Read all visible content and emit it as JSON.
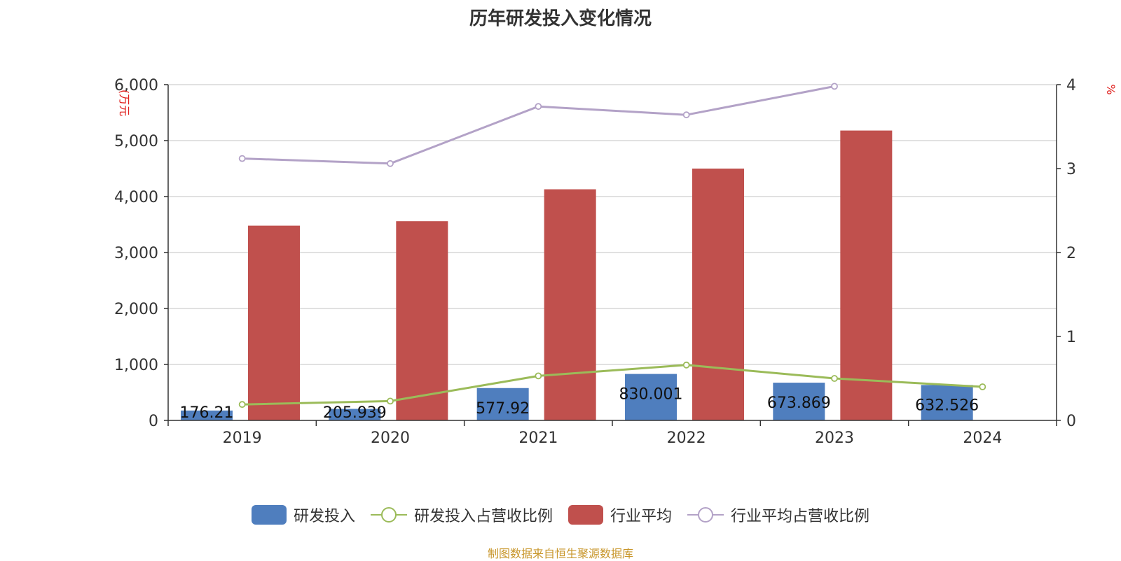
{
  "title": "历年研发投入变化情况",
  "source": "制图数据来自恒生聚源数据库",
  "colors": {
    "rd": "#4f7ebe",
    "industry": "#c0504d",
    "rd_ratio": "#9bbb59",
    "industry_ratio": "#b3a2c7",
    "axis": "#333333",
    "grid": "#cfcfcf",
    "unit": "#e0201e"
  },
  "chart_data": {
    "type": "bar",
    "title": "历年研发投入变化情况",
    "categories": [
      "2019",
      "2020",
      "2021",
      "2022",
      "2023",
      "2024"
    ],
    "y_left": {
      "label": "(万元",
      "ylim": [
        0,
        6000
      ],
      "ticks": [
        0,
        1000,
        2000,
        3000,
        4000,
        5000,
        6000
      ],
      "tick_labels": [
        "0",
        "1,000",
        "2,000",
        "3,000",
        "4,000",
        "5,000",
        "6,000"
      ]
    },
    "y_right": {
      "label": "%",
      "ylim": [
        0,
        4
      ],
      "ticks": [
        0,
        1,
        2,
        3,
        4
      ],
      "tick_labels": [
        "0",
        "1",
        "2",
        "3",
        "4"
      ]
    },
    "grid": true,
    "legend_position": "bottom",
    "series": [
      {
        "name": "研发投入",
        "type": "bar",
        "axis": "left",
        "values": [
          176.21,
          205.939,
          577.92,
          830.001,
          673.869,
          632.526
        ],
        "data_labels": [
          "176.21",
          "205.939",
          "577.92",
          "830.001",
          "673.869",
          "632.526"
        ]
      },
      {
        "name": "研发投入占营收比例",
        "type": "line",
        "axis": "right",
        "values": [
          0.19,
          0.23,
          0.53,
          0.66,
          0.5,
          0.4
        ]
      },
      {
        "name": "行业平均",
        "type": "bar",
        "axis": "left",
        "values": [
          3480,
          3560,
          4130,
          4500,
          5180,
          null
        ]
      },
      {
        "name": "行业平均占营收比例",
        "type": "line",
        "axis": "right",
        "values": [
          3.12,
          3.06,
          3.74,
          3.64,
          3.98,
          null
        ]
      }
    ]
  }
}
